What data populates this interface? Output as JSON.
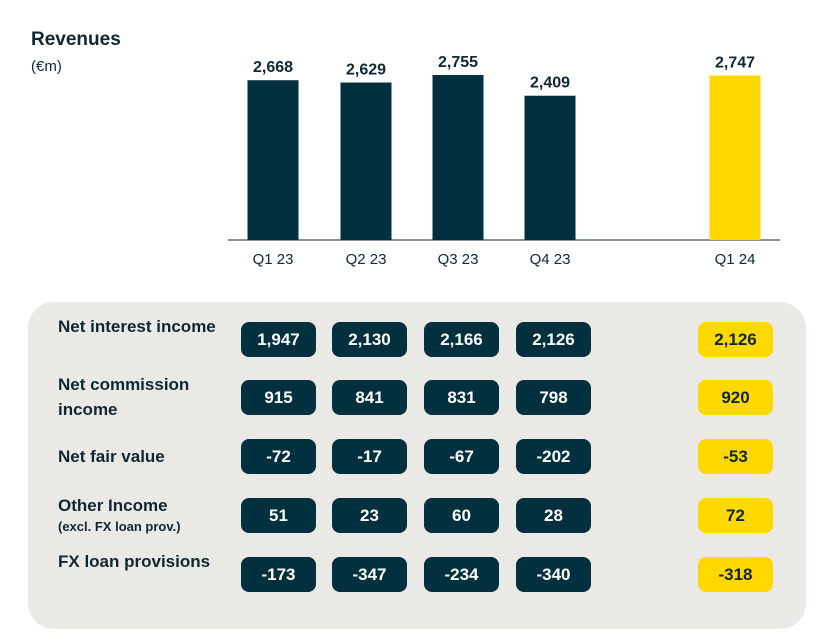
{
  "title": "Revenues",
  "unit": "(€m)",
  "colors": {
    "bar": "#02303f",
    "highlight": "#ffd800",
    "text": "#0f2733",
    "panel": "#ebe9e5"
  },
  "chart_data": {
    "type": "bar",
    "categories": [
      "Q1 23",
      "Q2 23",
      "Q3 23",
      "Q4 23",
      "Q1 24"
    ],
    "values": [
      2668,
      2629,
      2755,
      2409,
      2747
    ],
    "value_labels": [
      "2,668",
      "2,629",
      "2,755",
      "2,409",
      "2,747"
    ],
    "highlighted_category": "Q1 24",
    "title": "Revenues",
    "ylabel": "(€m)",
    "grid": false,
    "legend": "none"
  },
  "breakdown": {
    "rows": [
      {
        "label": "Net interest income",
        "values": [
          "1,947",
          "2,130",
          "2,166",
          "2,126",
          "2,126"
        ]
      },
      {
        "label": "Net commission income",
        "values": [
          "915",
          "841",
          "831",
          "798",
          "920"
        ]
      },
      {
        "label": "Net fair value",
        "values": [
          "-72",
          "-17",
          "-67",
          "-202",
          "-53"
        ]
      },
      {
        "label": "Other Income",
        "sublabel": "(excl. FX loan prov.)",
        "values": [
          "51",
          "23",
          "60",
          "28",
          "72"
        ]
      },
      {
        "label": "FX loan provisions",
        "values": [
          "-173",
          "-347",
          "-234",
          "-340",
          "-318"
        ]
      }
    ]
  }
}
